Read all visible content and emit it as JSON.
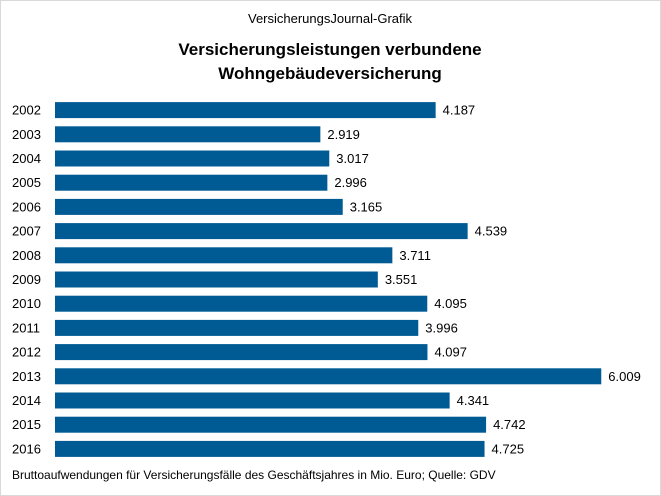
{
  "chart_data": {
    "type": "bar",
    "orientation": "horizontal",
    "supertitle": "VersicherungsJournal-Grafik",
    "title_lines": [
      "Versicherungsleistungen  verbundene",
      "Wohngebäudeversicherung"
    ],
    "source": "Bruttoaufwendungen  für Versicherungsfälle  des Geschäftsjahres  in Mio. Euro; Quelle:  GDV",
    "categories": [
      "2002",
      "2003",
      "2004",
      "2005",
      "2006",
      "2007",
      "2008",
      "2009",
      "2010",
      "2011",
      "2012",
      "2013",
      "2014",
      "2015",
      "2016"
    ],
    "values": [
      4187,
      2919,
      3017,
      2996,
      3165,
      4539,
      3711,
      3551,
      4095,
      3996,
      4097,
      6009,
      4341,
      4742,
      4725
    ],
    "value_labels": [
      "4.187",
      "2.919",
      "3.017",
      "2.996",
      "3.165",
      "4.539",
      "3.711",
      "3.551",
      "4.095",
      "3.996",
      "4.097",
      "6.009",
      "4.341",
      "4.742",
      "4.725"
    ],
    "xlim": [
      0,
      6600
    ],
    "grid": false,
    "legend": "none",
    "bar_color": "#005b94"
  }
}
